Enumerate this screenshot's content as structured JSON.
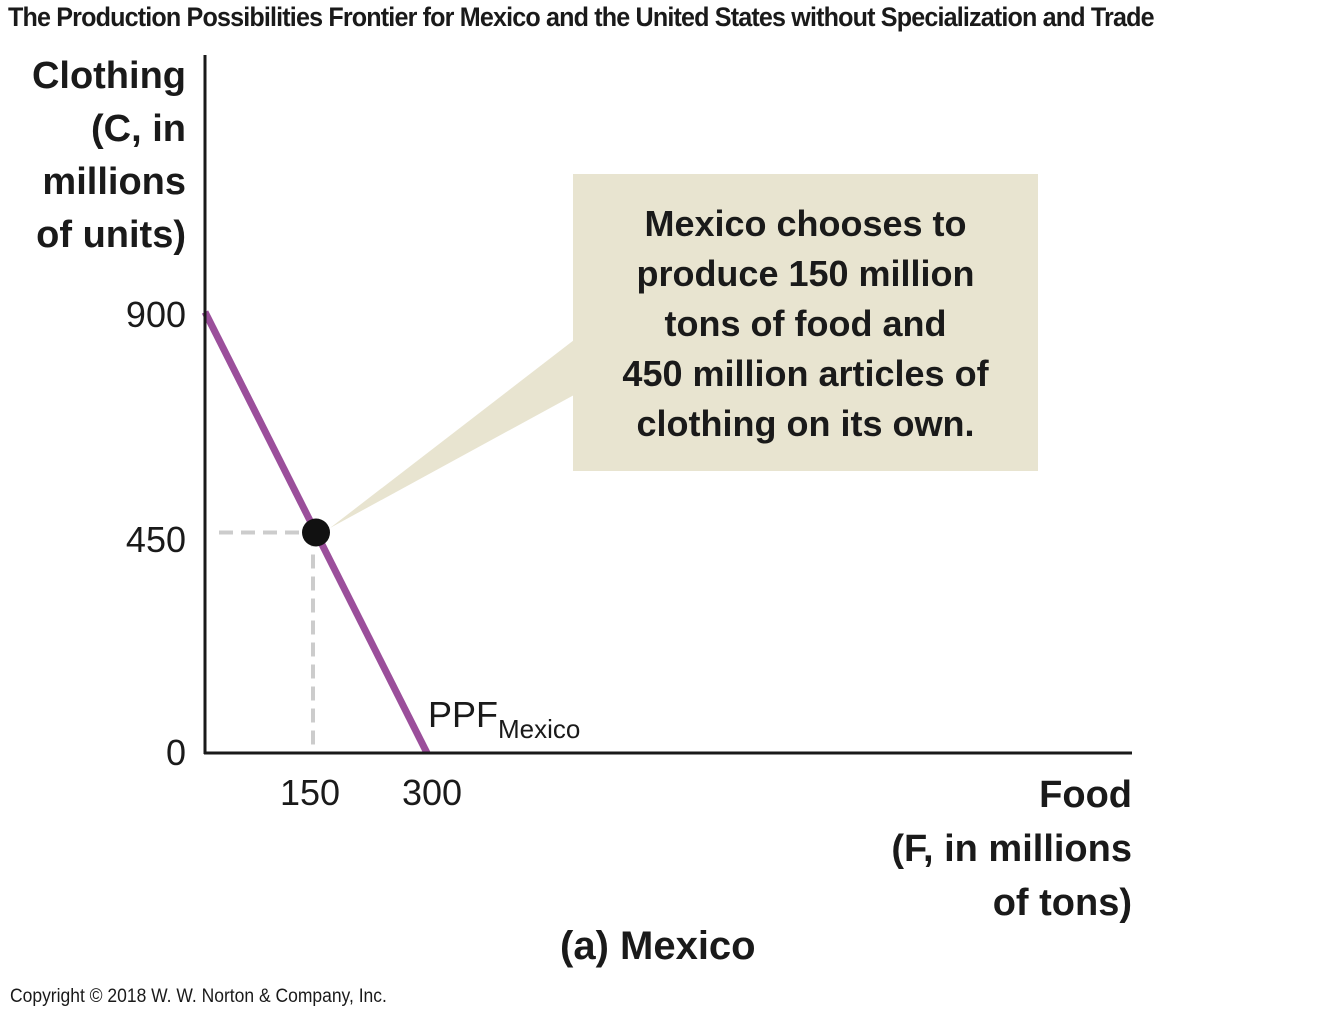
{
  "title": "The Production Possibilities Frontier for Mexico and the United States without Specialization and Trade",
  "copyright": "Copyright © 2018 W. W. Norton & Company, Inc.",
  "colors": {
    "ppf": "#9b4f9b",
    "callout_bg": "#e8e4d0",
    "dashed": "#cccccc",
    "point": "#111111"
  },
  "chart_data": {
    "type": "line",
    "panel_label": "(a) Mexico",
    "ylabel_lines": [
      "Clothing",
      "(C, in",
      "millions",
      "of units)"
    ],
    "xlabel_lines": [
      "Food",
      "(F, in millions",
      "of tons)"
    ],
    "y_ticks": [
      "900",
      "450",
      "0"
    ],
    "x_ticks": [
      "150",
      "300"
    ],
    "xlim": [
      0,
      1200
    ],
    "ylim": [
      0,
      900
    ],
    "series": [
      {
        "name": "PPF",
        "name_subscript": "Mexico",
        "x": [
          0,
          300
        ],
        "y": [
          900,
          0
        ]
      }
    ],
    "point": {
      "x": 150,
      "y": 450
    },
    "annotation_lines": [
      "Mexico chooses to",
      "produce 150 million",
      "tons of food and",
      "450 million articles of",
      "clothing on its own."
    ]
  }
}
